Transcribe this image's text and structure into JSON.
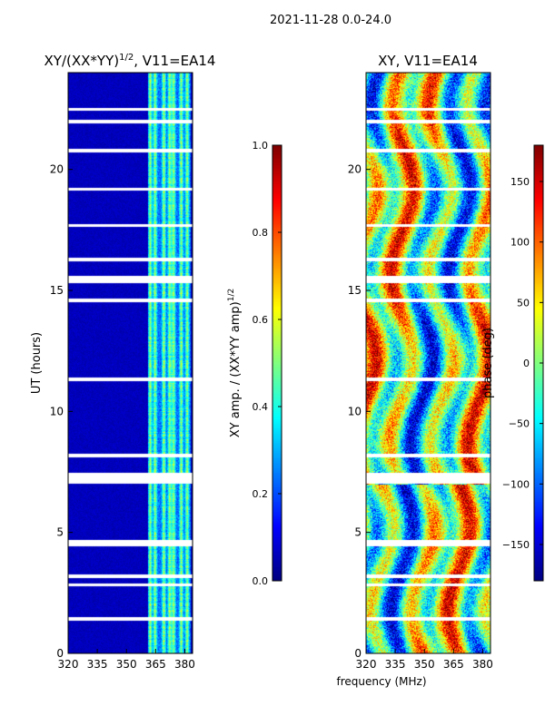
{
  "figure_title": "2021-11-28 0.0-24.0",
  "shared_xlabel": "frequency (MHz)",
  "chart_data": [
    {
      "type": "heatmap",
      "title_text": "XY/(XX*YY)",
      "title_exp": "1/2",
      "title_suffix": ", V11=EA14",
      "xlabel": "",
      "ylabel": "UT (hours)",
      "xlim": [
        320,
        384
      ],
      "ylim": [
        0,
        24
      ],
      "xticks": [
        320,
        335,
        350,
        365,
        380
      ],
      "yticks": [
        0,
        5,
        10,
        15,
        20
      ],
      "colorbar": {
        "label_text": "XY amp. / (XX*YY amp)",
        "label_exp": "1/2",
        "range": [
          0.0,
          1.0
        ],
        "ticks": [
          "0.0",
          "0.2",
          "0.4",
          "0.6",
          "0.8",
          "1.0"
        ],
        "tick_values": [
          0.0,
          0.2,
          0.4,
          0.6,
          0.8,
          1.0
        ]
      },
      "colormap": "jet",
      "active_band_mhz": [
        361,
        383
      ],
      "strong_channels_mhz": [
        362,
        364.5,
        369,
        372,
        374,
        378,
        381
      ],
      "typical_values": {
        "background": 0.05,
        "active_band": 0.35
      },
      "flagged_hours": [
        1.45,
        2.85,
        3.2,
        4.5,
        4.62,
        7.1,
        7.25,
        7.4,
        8.2,
        11.35,
        14.6,
        15.4,
        15.55,
        16.3,
        17.7,
        19.2,
        20.8,
        22.0,
        22.5
      ]
    },
    {
      "type": "heatmap",
      "title_text": "XY, V11=EA14",
      "xlabel": "",
      "ylabel": "",
      "xlim": [
        320,
        384
      ],
      "ylim": [
        0,
        24
      ],
      "xticks": [
        320,
        335,
        350,
        365,
        380
      ],
      "yticks": [
        0,
        5,
        10,
        15,
        20
      ],
      "colorbar": {
        "label_text": "phase (deg)",
        "range": [
          -180,
          180
        ],
        "ticks": [
          "−150",
          "−100",
          "−50",
          "0",
          "50",
          "100",
          "150"
        ],
        "tick_values": [
          -150,
          -100,
          -50,
          0,
          50,
          100,
          150
        ]
      },
      "colormap": "jet",
      "phase_pattern": "vertical stripes alternating red/yellow/cyan with frequency, noisy, drifting with time",
      "flagged_hours": [
        1.45,
        2.85,
        3.2,
        4.5,
        4.62,
        7.1,
        7.25,
        7.4,
        8.2,
        11.35,
        14.6,
        15.4,
        15.55,
        16.3,
        17.7,
        19.2,
        20.8,
        22.0,
        22.5
      ]
    }
  ]
}
